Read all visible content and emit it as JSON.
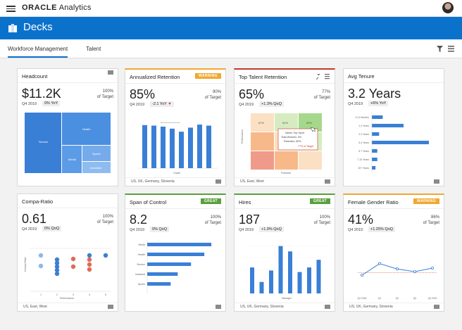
{
  "app": {
    "brand": "ORACLE",
    "product": "Analytics",
    "title": "Decks"
  },
  "colors": {
    "accent": "#0b72cc",
    "warning": "#f0a830",
    "great": "#5aa03c",
    "down": "#c0392b"
  },
  "tabs": [
    {
      "label": "Workforce Management"
    },
    {
      "label": "Talent"
    }
  ],
  "cards": [
    {
      "title": "Headcount",
      "value": "$11.2K",
      "target": "100%",
      "target_label": "of Target",
      "period": "Q4 2019",
      "delta": "0% YoY"
    },
    {
      "title": "Annualized Retention",
      "badge": "WARNING",
      "value": "85%",
      "target": "90%",
      "target_label": "of Target",
      "period": "Q4 2019",
      "delta": "-2.1 YoY",
      "footer": "US, UK, Germany, Slovenia"
    },
    {
      "title": "Top Talent Retention",
      "value": "65%",
      "target": "77%",
      "target_label": "of Target",
      "period": "Q4 2019",
      "delta": "+1.3% QoQ",
      "footer": "US, East, West"
    },
    {
      "title": "Avg Tenure",
      "value": "3.2 Years",
      "period": "Q4 2019",
      "delta": "+6% YoY"
    },
    {
      "title": "Compa-Ratio",
      "value": "0.61",
      "target": "100%",
      "target_label": "of Target",
      "period": "Q4 2019",
      "delta": "0% QoQ",
      "footer": "US, East, West"
    },
    {
      "title": "Span of Control",
      "badge": "GREAT",
      "value": "8.2",
      "target": "100%",
      "target_label": "of Target",
      "period": "Q4 2019",
      "delta": "0% QoQ"
    },
    {
      "title": "Hires",
      "badge": "GREAT",
      "value": "187",
      "target": "100%",
      "target_label": "of Target",
      "period": "Q4 2019",
      "delta": "+1.9% QoQ",
      "footer": "US, UK, Germany, Slovenia"
    },
    {
      "title": "Female Gender Ratio",
      "badge": "WARNING",
      "value": "41%",
      "target": "86%",
      "target_label": "of Target",
      "period": "Q4 2019",
      "delta": "+1.25% QoQ",
      "footer": "US, UK, Germany, Slovenia"
    }
  ],
  "treemap": {
    "labels": [
      "Service",
      "Health",
      "Media",
      "Sports",
      "Industrial"
    ]
  },
  "heatmap": {
    "cells": [
      "67%",
      "62%",
      "82%",
      "",
      "",
      "",
      "",
      "",
      ""
    ],
    "tooltip": {
      "name_label": "Name:",
      "name": "Top Sport",
      "total_label": "Total Workers:",
      "total": "0%",
      "retention_label": "Retention:",
      "retention": "80%",
      "of_target": "77% of Target"
    },
    "ylabel": "Performance",
    "xlabel": "Potential"
  },
  "chart_data": [
    {
      "type": "bar",
      "title": "Annualized Retention",
      "xlabel": "Grade",
      "values": [
        85,
        84,
        82,
        78,
        72,
        80,
        86,
        84
      ],
      "ylim": [
        0,
        100
      ]
    },
    {
      "type": "bar",
      "title": "Avg Tenure",
      "orientation": "horizontal",
      "categories": [
        "0-12 Months",
        "1-2 Years",
        "2-3 Years",
        "3-4 Years",
        "5-7 Years",
        "7-10 Years",
        "10+ Years"
      ],
      "values": [
        1.2,
        3.5,
        0.8,
        6.3,
        0.6,
        0.6,
        0.4
      ]
    },
    {
      "type": "scatter",
      "title": "Compa-Ratio",
      "ylabel": "Compa-Ratio",
      "xlabel": "Performance",
      "x_ticks": [
        "1",
        "2",
        "3",
        "4",
        "5"
      ]
    },
    {
      "type": "bar",
      "title": "Span of Control",
      "orientation": "horizontal",
      "categories": [
        "Media",
        "Health",
        "Service",
        "Industrial",
        "Sports"
      ],
      "values": [
        8.2,
        7.3,
        5.6,
        3.9,
        3.0
      ]
    },
    {
      "type": "bar",
      "title": "Hires",
      "xlabel": "Manager",
      "values": [
        34,
        15,
        30,
        62,
        55,
        28,
        34,
        44
      ]
    },
    {
      "type": "line",
      "title": "Female Gender Ratio",
      "x_ticks": [
        "Q4 2018",
        "Q1",
        "Q2",
        "Q3",
        "Q4 2019"
      ],
      "values": [
        40.2,
        41.5,
        40.9,
        40.6,
        41.0
      ],
      "target_line": 40.5
    }
  ]
}
